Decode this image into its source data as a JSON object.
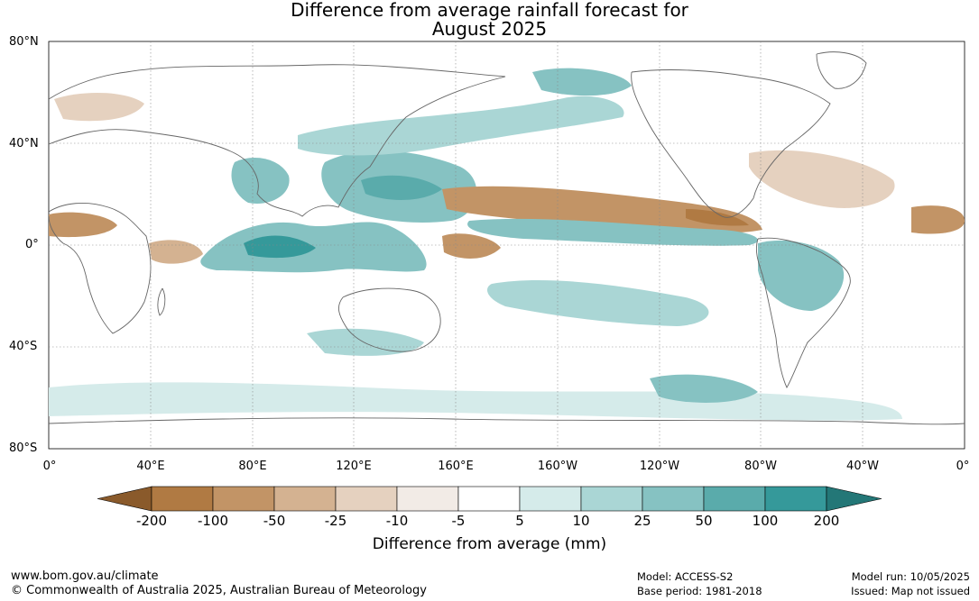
{
  "title_line1": "Difference from average rainfall forecast for",
  "title_line2": "August 2025",
  "lat_labels": [
    "80°N",
    "40°N",
    "0°",
    "40°S",
    "80°S"
  ],
  "lon_labels": [
    "0°",
    "40°E",
    "80°E",
    "120°E",
    "160°E",
    "160°W",
    "120°W",
    "80°W",
    "40°W",
    "0°"
  ],
  "colorbar": {
    "ticks": [
      "-200",
      "-100",
      "-50",
      "-25",
      "-10",
      "-5",
      "5",
      "10",
      "25",
      "50",
      "100",
      "200"
    ],
    "colors": [
      "#8a5a2b",
      "#b07a43",
      "#c29466",
      "#d4b291",
      "#e5d1bf",
      "#f2ebe6",
      "#ffffff",
      "#d5ebea",
      "#aad6d5",
      "#86c2c2",
      "#5aabab",
      "#35999a",
      "#237777"
    ],
    "label": "Difference from average (mm)"
  },
  "footer": {
    "url": "www.bom.gov.au/climate",
    "copyright": "© Commonwealth of Australia 2025, Australian Bureau of Meteorology",
    "model": "Model: ACCESS-S2",
    "base_period": "Base period: 1981-2018",
    "model_run": "Model run: 10/05/2025",
    "issued": "Issued: Map not issued"
  }
}
